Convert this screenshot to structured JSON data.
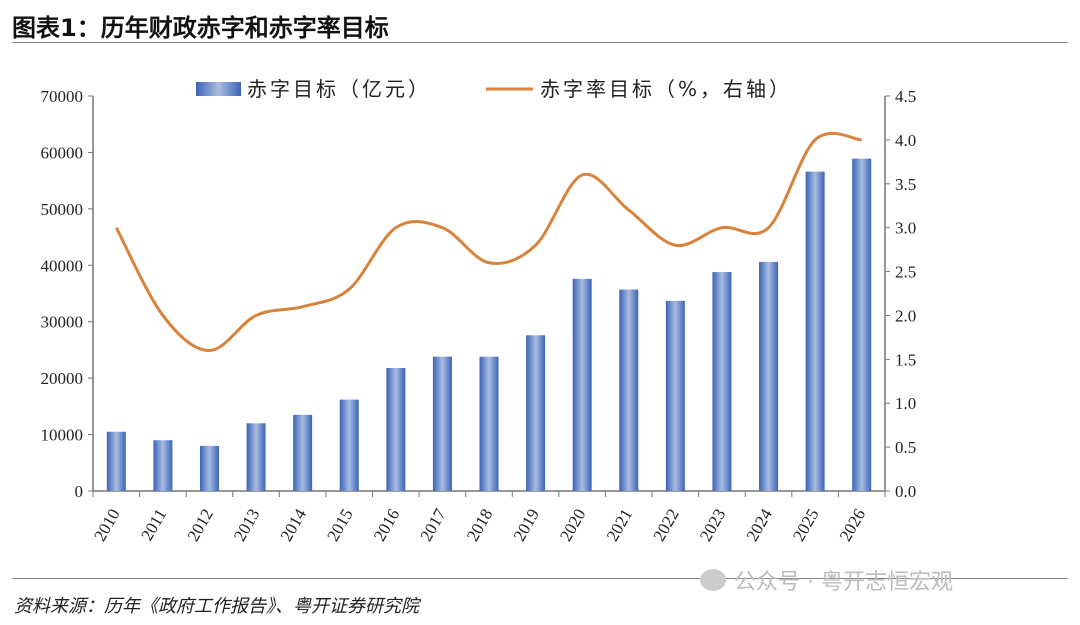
{
  "title": "图表1：历年财政赤字和赤字率目标",
  "source": "资料来源：历年《政府工作报告》、粤开证券研究院",
  "watermark": "公众号 · 粤开志恒宏观",
  "chart_data": {
    "type": "bar+line",
    "categories": [
      "2010",
      "2011",
      "2012",
      "2013",
      "2014",
      "2015",
      "2016",
      "2017",
      "2018",
      "2019",
      "2020",
      "2021",
      "2022",
      "2023",
      "2024",
      "2025",
      "2026"
    ],
    "series": [
      {
        "name": "赤字目标（亿元）",
        "type": "bar",
        "axis": "left",
        "color": "#4a6fbf",
        "values": [
          10500,
          9000,
          8000,
          12000,
          13500,
          16200,
          21800,
          23800,
          23800,
          27600,
          37600,
          35700,
          33700,
          38800,
          40600,
          56600,
          58900
        ]
      },
      {
        "name": "赤字率目标（%，右轴）",
        "type": "line",
        "axis": "right",
        "color": "#d9823b",
        "values": [
          3.0,
          2.0,
          1.6,
          2.0,
          2.1,
          2.3,
          3.0,
          3.0,
          2.6,
          2.8,
          3.6,
          3.2,
          2.8,
          3.0,
          3.0,
          4.0,
          4.0
        ]
      }
    ],
    "y_left": {
      "range": [
        0,
        70000
      ],
      "ticks": [
        "0",
        "10000",
        "20000",
        "30000",
        "40000",
        "50000",
        "60000",
        "70000"
      ]
    },
    "y_right": {
      "range": [
        0,
        4.5
      ],
      "ticks": [
        "0.0",
        "0.5",
        "1.0",
        "1.5",
        "2.0",
        "2.5",
        "3.0",
        "3.5",
        "4.0",
        "4.5"
      ]
    },
    "legend": "top",
    "grid": false
  }
}
